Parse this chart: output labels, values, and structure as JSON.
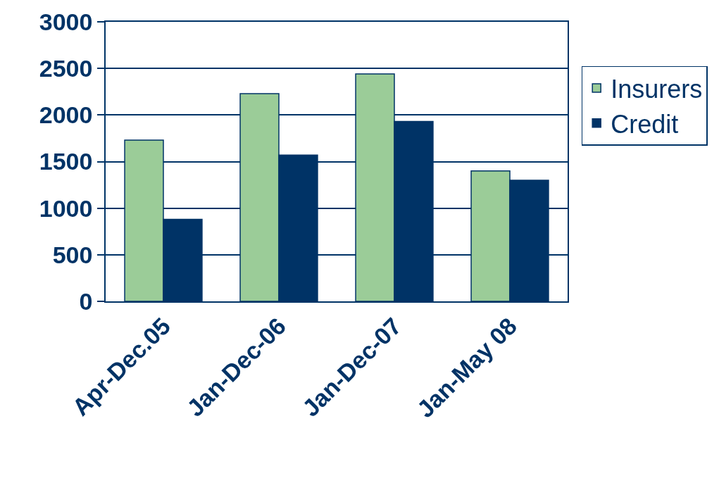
{
  "chart_data": {
    "type": "bar",
    "categories": [
      "Apr-Dec.05",
      "Jan-Dec-06",
      "Jan-Dec-07",
      "Jan-May 08"
    ],
    "series": [
      {
        "name": "Insurers",
        "color": "#9bcc98",
        "values": [
          1730,
          2230,
          2440,
          1400
        ]
      },
      {
        "name": "Credit",
        "color": "#003366",
        "values": [
          880,
          1570,
          1930,
          1300
        ]
      }
    ],
    "ylim": [
      0,
      3000
    ],
    "yticks": [
      0,
      500,
      1000,
      1500,
      2000,
      2500,
      3000
    ],
    "grid": "y",
    "legend": "right"
  }
}
